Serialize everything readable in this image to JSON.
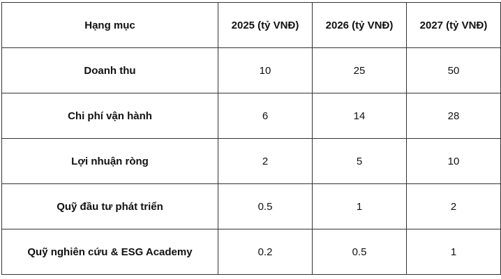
{
  "table": {
    "header": [
      "Hạng mục",
      "2025 (tỷ VNĐ)",
      "2026 (tỷ VNĐ)",
      "2027 (tỷ VNĐ)"
    ],
    "rows": [
      [
        "Doanh thu",
        "10",
        "25",
        "50"
      ],
      [
        "Chi phí vận hành",
        "6",
        "14",
        "28"
      ],
      [
        "Lợi nhuận ròng",
        "2",
        "5",
        "10"
      ],
      [
        "Quỹ đầu tư phát triển",
        "0.5",
        "1",
        "2"
      ],
      [
        "Quỹ nghiên cứu & ESG Academy",
        "0.2",
        "0.5",
        "1"
      ]
    ]
  }
}
